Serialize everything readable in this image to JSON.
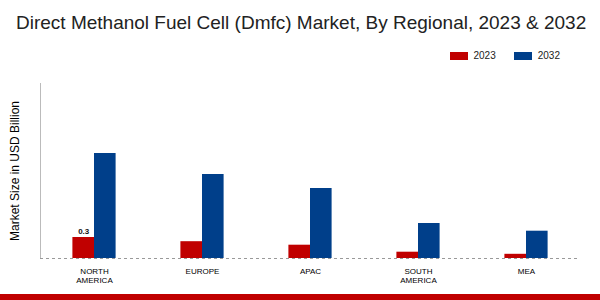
{
  "chart_data": {
    "type": "bar",
    "title": "Direct Methanol Fuel Cell (Dmfc) Market, By Regional, 2023 & 2032",
    "ylabel": "Market Size in USD Billion",
    "categories": [
      "NORTH AMERICA",
      "EUROPE",
      "APAC",
      "SOUTH AMERICA",
      "MEA"
    ],
    "series": [
      {
        "name": "2023",
        "color": "#c00000",
        "values": [
          0.3,
          0.24,
          0.19,
          0.09,
          0.06
        ],
        "value_labels": [
          "0.3",
          null,
          null,
          null,
          null
        ]
      },
      {
        "name": "2032",
        "color": "#003f8a",
        "values": [
          1.5,
          1.2,
          1.0,
          0.5,
          0.39
        ]
      }
    ],
    "ylim": [
      0,
      2.5
    ],
    "tick_labels": "x",
    "data_labels": true,
    "legend": "top-right"
  }
}
